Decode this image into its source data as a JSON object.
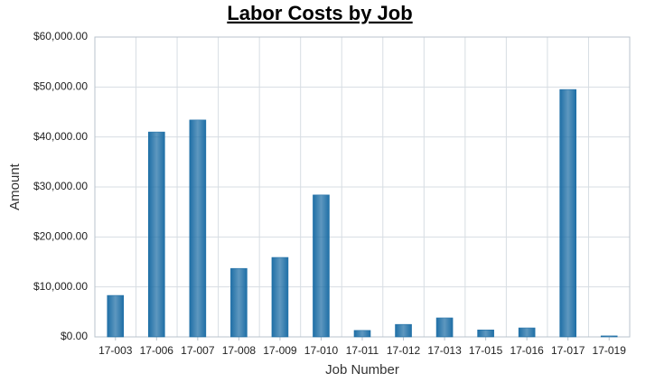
{
  "chart_data": {
    "type": "bar",
    "title": "Labor Costs by Job",
    "x_label": "Job Number",
    "y_label": "Amount",
    "categories": [
      "17-003",
      "17-006",
      "17-007",
      "17-008",
      "17-009",
      "17-010",
      "17-011",
      "17-012",
      "17-013",
      "17-015",
      "17-016",
      "17-017",
      "17-019"
    ],
    "values": [
      8300,
      41000,
      43400,
      13700,
      15900,
      28400,
      1300,
      2500,
      3800,
      1400,
      1800,
      49500,
      200
    ],
    "color": "#1f6fa6",
    "ylim": [
      0,
      60000
    ],
    "yticks": [
      {
        "value": 0,
        "label": "$0.00"
      },
      {
        "value": 10000,
        "label": "$10,000.00"
      },
      {
        "value": 20000,
        "label": "$20,000.00"
      },
      {
        "value": 30000,
        "label": "$30,000.00"
      },
      {
        "value": 40000,
        "label": "$40,000.00"
      },
      {
        "value": 50000,
        "label": "$50,000.00"
      },
      {
        "value": 60000,
        "label": "$60,000.00"
      }
    ],
    "grid": true
  }
}
